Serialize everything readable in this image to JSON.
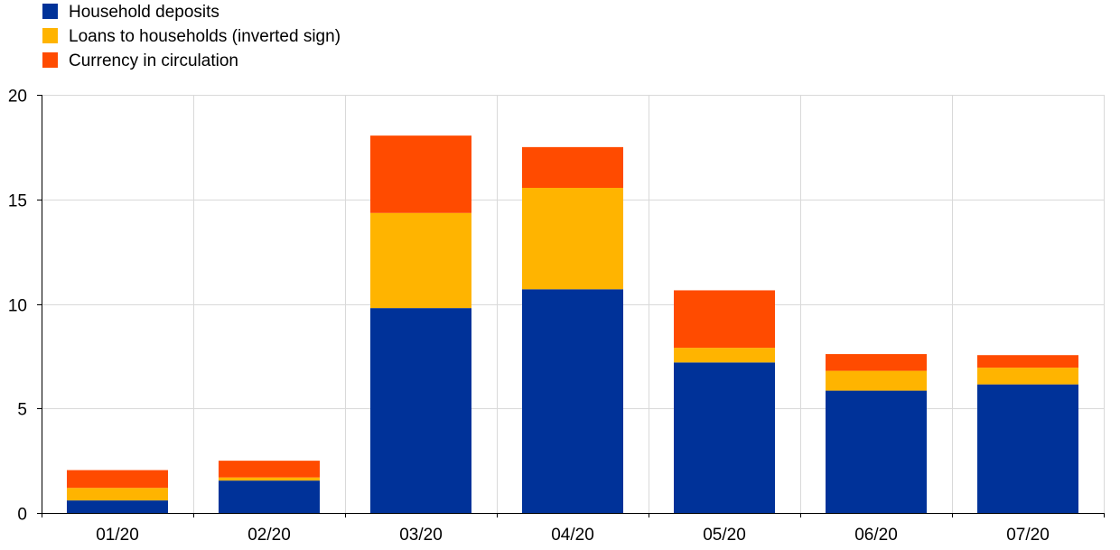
{
  "chart_data": {
    "type": "bar",
    "stacked": true,
    "title": "",
    "xlabel": "",
    "ylabel": "",
    "categories": [
      "01/20",
      "02/20",
      "03/20",
      "04/20",
      "05/20",
      "06/20",
      "07/20"
    ],
    "series": [
      {
        "name": "Household deposits",
        "color": "#003299",
        "values": [
          0.6,
          1.55,
          9.8,
          10.7,
          7.2,
          5.85,
          6.15
        ]
      },
      {
        "name": "Loans to households (inverted sign)",
        "color": "#FFB400",
        "values": [
          0.6,
          0.15,
          4.55,
          4.85,
          0.7,
          0.95,
          0.8
        ]
      },
      {
        "name": "Currency in circulation",
        "color": "#FF4B00",
        "values": [
          0.85,
          0.8,
          3.7,
          1.95,
          2.75,
          0.8,
          0.6
        ]
      }
    ],
    "ylim": [
      0,
      20
    ],
    "yticks": [
      0,
      5,
      10,
      15,
      20
    ],
    "grid": true,
    "legend": "top-left"
  }
}
